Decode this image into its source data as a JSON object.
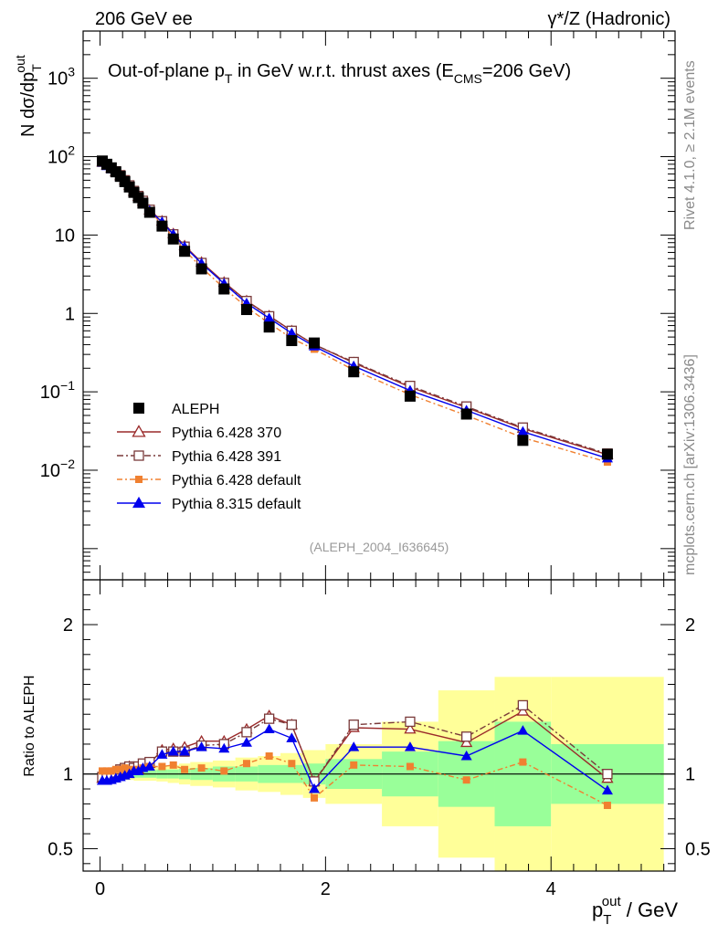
{
  "header": {
    "left_label": "206 GeV ee",
    "right_label": "γ*/Z (Hadronic)",
    "side_label_top": "Rivet 4.1.0, ≥ 2.1M events",
    "side_label_bottom": "mcplots.cern.ch [arXiv:1306.3436]"
  },
  "chart_data": [
    {
      "panel": "main",
      "type": "line",
      "title": "Out-of-plane p_T in GeV w.r.t. thrust axes (E_CMS=206 GeV)",
      "title_parts": {
        "main": "Out-of-plane p",
        "sub1": "T",
        "middle": " in GeV w.r.t. thrust axes (E",
        "sub2": "CMS",
        "end": "=206 GeV)"
      },
      "ylabel": "N  dσ/dp_T^out",
      "ylabel_parts": {
        "main": "N   dσ/dp",
        "sub": "T",
        "sup": "out"
      },
      "yscale": "log",
      "xlim": [
        -0.15,
        5.1
      ],
      "ylim": [
        0.0004,
        4000
      ],
      "y_tick_labels": [
        {
          "value": 0.01,
          "base": "10",
          "exp": "−2"
        },
        {
          "value": 0.1,
          "base": "10",
          "exp": "−1"
        },
        {
          "value": 1,
          "base": "1",
          "exp": ""
        },
        {
          "value": 10,
          "base": "10",
          "exp": ""
        },
        {
          "value": 100,
          "base": "10",
          "exp": "2"
        },
        {
          "value": 1000,
          "base": "10",
          "exp": "3"
        }
      ],
      "watermark": "(ALEPH_2004_I636645)",
      "legend_position": "lower-left",
      "x": [
        0.02,
        0.06,
        0.1,
        0.14,
        0.18,
        0.22,
        0.26,
        0.3,
        0.34,
        0.38,
        0.44,
        0.55,
        0.65,
        0.75,
        0.9,
        1.1,
        1.3,
        1.5,
        1.7,
        1.9,
        2.25,
        2.75,
        3.25,
        3.75,
        4.5
      ],
      "series": [
        {
          "name": "ALEPH",
          "style": "data",
          "color": "#000000",
          "values": [
            88,
            80,
            72,
            64,
            56,
            48,
            41,
            35,
            30,
            25.5,
            19.5,
            13,
            8.9,
            6.2,
            3.7,
            2.05,
            1.12,
            0.67,
            0.45,
            0.42,
            0.18,
            0.088,
            0.052,
            0.024,
            0.016
          ]
        },
        {
          "name": "Pythia 6.428 370",
          "style": "open-triangle",
          "color": "#9a2a2a",
          "values": [
            85,
            78,
            71,
            64,
            57,
            50,
            43,
            36,
            31,
            27,
            20.8,
            15.1,
            10.4,
            7.3,
            4.5,
            2.5,
            1.45,
            0.93,
            0.6,
            0.4,
            0.235,
            0.115,
            0.063,
            0.034,
            0.0158
          ]
        },
        {
          "name": "Pythia 6.428 391",
          "style": "open-square",
          "color": "#7a3a3a",
          "values": [
            86,
            79,
            72,
            65,
            58,
            50,
            43,
            36.5,
            31.5,
            27.3,
            21,
            15,
            10.2,
            7.1,
            4.4,
            2.45,
            1.44,
            0.92,
            0.6,
            0.4,
            0.24,
            0.119,
            0.065,
            0.035,
            0.0163
          ]
        },
        {
          "name": "Pythia 6.428 default",
          "style": "filled-square-dashdot",
          "color": "#f08030",
          "values": [
            90,
            82,
            74,
            66,
            58,
            50,
            42.5,
            36,
            31,
            26.5,
            20.5,
            13.7,
            9.4,
            6.4,
            3.85,
            2.1,
            1.2,
            0.75,
            0.48,
            0.35,
            0.19,
            0.092,
            0.05,
            0.026,
            0.0127
          ]
        },
        {
          "name": "Pythia 8.315 default",
          "style": "filled-triangle",
          "color": "#0000ee",
          "values": [
            84,
            76,
            69,
            62,
            55,
            47.5,
            41,
            35.5,
            30.5,
            26.5,
            20.4,
            14.7,
            10.2,
            7.1,
            4.35,
            2.4,
            1.35,
            0.87,
            0.56,
            0.38,
            0.213,
            0.104,
            0.058,
            0.031,
            0.0142
          ]
        }
      ]
    },
    {
      "panel": "ratio",
      "type": "line",
      "ylabel": "Ratio to ALEPH",
      "xlabel": "p_T^out / GeV",
      "xlabel_parts": {
        "main": "p",
        "sub": "T",
        "sup": "out",
        "end": " / GeV"
      },
      "xlim": [
        -0.15,
        5.1
      ],
      "ylim": [
        0.35,
        2.3
      ],
      "x_tick_labels": [
        {
          "value": 0,
          "label": "0"
        },
        {
          "value": 2,
          "label": "2"
        },
        {
          "value": 4,
          "label": "4"
        }
      ],
      "y_tick_labels": [
        {
          "value": 0.5,
          "label": "0.5"
        },
        {
          "value": 1,
          "label": "1"
        },
        {
          "value": 2,
          "label": "2"
        }
      ],
      "x": [
        0.02,
        0.06,
        0.1,
        0.14,
        0.18,
        0.22,
        0.26,
        0.3,
        0.34,
        0.38,
        0.44,
        0.55,
        0.65,
        0.75,
        0.9,
        1.1,
        1.3,
        1.5,
        1.7,
        1.9,
        2.25,
        2.75,
        3.25,
        3.75,
        4.5
      ],
      "uncertainty_bands": [
        {
          "x0": 0.0,
          "x1": 0.3,
          "inner": 0.02,
          "outer": 0.04
        },
        {
          "x0": 0.3,
          "x1": 0.5,
          "inner": 0.025,
          "outer": 0.045
        },
        {
          "x0": 0.5,
          "x1": 0.6,
          "inner": 0.03,
          "outer": 0.05
        },
        {
          "x0": 0.6,
          "x1": 0.7,
          "inner": 0.03,
          "outer": 0.06
        },
        {
          "x0": 0.7,
          "x1": 0.8,
          "inner": 0.035,
          "outer": 0.07
        },
        {
          "x0": 0.8,
          "x1": 1.0,
          "inner": 0.04,
          "outer": 0.08
        },
        {
          "x0": 1.0,
          "x1": 1.2,
          "inner": 0.05,
          "outer": 0.09
        },
        {
          "x0": 1.2,
          "x1": 1.4,
          "inner": 0.05,
          "outer": 0.11
        },
        {
          "x0": 1.4,
          "x1": 1.6,
          "inner": 0.06,
          "outer": 0.12
        },
        {
          "x0": 1.6,
          "x1": 1.8,
          "inner": 0.06,
          "outer": 0.14
        },
        {
          "x0": 1.8,
          "x1": 2.0,
          "inner": 0.07,
          "outer": 0.16
        },
        {
          "x0": 2.0,
          "x1": 2.5,
          "inner": 0.1,
          "outer": 0.2
        },
        {
          "x0": 2.5,
          "x1": 3.0,
          "inner": 0.15,
          "outer": 0.35
        },
        {
          "x0": 3.0,
          "x1": 3.5,
          "inner": 0.22,
          "outer": 0.56
        },
        {
          "x0": 3.5,
          "x1": 4.0,
          "inner": 0.35,
          "outer": 0.65
        },
        {
          "x0": 4.0,
          "x1": 5.0,
          "inner": 0.2,
          "outer": 0.65
        }
      ],
      "series": [
        {
          "name": "Pythia 6.428 370",
          "style": "open-triangle",
          "color": "#9a2a2a",
          "values": [
            0.97,
            0.975,
            0.985,
            1.0,
            1.02,
            1.04,
            1.05,
            1.03,
            1.03,
            1.06,
            1.07,
            1.16,
            1.17,
            1.18,
            1.22,
            1.22,
            1.3,
            1.39,
            1.33,
            0.95,
            1.31,
            1.3,
            1.21,
            1.42,
            0.97
          ]
        },
        {
          "name": "Pythia 6.428 391",
          "style": "open-square",
          "color": "#7a3a3a",
          "values": [
            0.98,
            0.985,
            0.995,
            1.01,
            1.03,
            1.04,
            1.05,
            1.04,
            1.05,
            1.07,
            1.08,
            1.15,
            1.15,
            1.15,
            1.19,
            1.2,
            1.28,
            1.37,
            1.33,
            0.95,
            1.33,
            1.35,
            1.25,
            1.46,
            1.0
          ]
        },
        {
          "name": "Pythia 6.428 default",
          "style": "filled-square-dashdot",
          "color": "#f08030",
          "values": [
            1.02,
            1.02,
            1.02,
            1.03,
            1.03,
            1.04,
            1.03,
            1.03,
            1.03,
            1.04,
            1.05,
            1.05,
            1.06,
            1.03,
            1.04,
            1.02,
            1.07,
            1.12,
            1.07,
            0.84,
            1.06,
            1.05,
            0.96,
            1.08,
            0.79
          ]
        },
        {
          "name": "Pythia 8.315 default",
          "style": "filled-triangle",
          "color": "#0000ee",
          "values": [
            0.955,
            0.955,
            0.96,
            0.97,
            0.98,
            0.99,
            1.0,
            1.02,
            1.02,
            1.04,
            1.05,
            1.13,
            1.15,
            1.15,
            1.18,
            1.17,
            1.21,
            1.3,
            1.24,
            0.9,
            1.18,
            1.18,
            1.12,
            1.29,
            0.89
          ]
        }
      ]
    }
  ]
}
